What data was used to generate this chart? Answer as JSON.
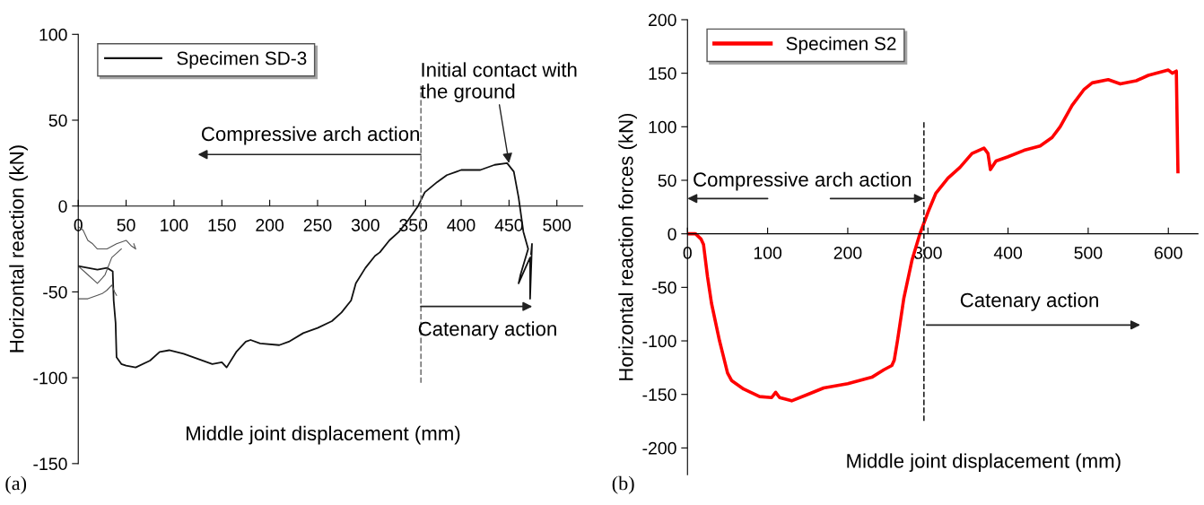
{
  "chart_data": [
    {
      "type": "line",
      "xlabel": "Middle joint displacement (mm)",
      "ylabel": "Horizontal reaction (kN)",
      "xlim": [
        0,
        527
      ],
      "xticks": [
        0,
        50,
        100,
        150,
        200,
        250,
        300,
        350,
        400,
        450,
        500
      ],
      "ylim": [
        -150,
        100
      ],
      "yticks": [
        -150,
        -100,
        -50,
        0,
        50,
        100
      ],
      "grid": false,
      "legend": "top left",
      "line_style": "solid",
      "marker": "none",
      "ref_lines": [
        {
          "axis": "x",
          "value": 358,
          "color": "#777777",
          "line_style": "dashed"
        }
      ],
      "annotations": [
        "(a)",
        "Compressive arch action",
        {
          "text": "Initial contact with\nthe ground",
          "x": 450,
          "y": 25
        },
        "Catenary action"
      ],
      "series": [
        {
          "name": "Specimen SD-3",
          "color": "#111111",
          "x": [
            0,
            10,
            20,
            30,
            36,
            37,
            39,
            40,
            45,
            50,
            60,
            75,
            85,
            95,
            110,
            125,
            140,
            150,
            155,
            165,
            175,
            180,
            190,
            210,
            220,
            235,
            250,
            265,
            275,
            285,
            290,
            300,
            310,
            315,
            325,
            335,
            345,
            355,
            362,
            375,
            385,
            400,
            420,
            435,
            448,
            455,
            460,
            465,
            470,
            462,
            460,
            468,
            472,
            472,
            474,
            473
          ],
          "values": [
            -35,
            -36,
            -37,
            -36,
            -38,
            -55,
            -68,
            -88,
            -92,
            -93,
            -94,
            -90,
            -85,
            -84,
            -86,
            -89,
            -92,
            -91,
            -94,
            -85,
            -79,
            -78,
            -80,
            -81,
            -79,
            -74,
            -71,
            -67,
            -62,
            -55,
            -45,
            -36,
            -29,
            -27,
            -20,
            -15,
            -8,
            0,
            8,
            14,
            18,
            21,
            21,
            24,
            25,
            20,
            5,
            -15,
            -25,
            -40,
            -45,
            -35,
            -30,
            -54,
            -22,
            -28
          ]
        },
        {
          "color": "#555555",
          "x": [
            0,
            10,
            20,
            25,
            30,
            35,
            38,
            40
          ],
          "values": [
            -54,
            -54,
            -52,
            -51,
            -49,
            -46,
            -50,
            -52
          ]
        },
        {
          "color": "#555555",
          "x": [
            0,
            5,
            10,
            15,
            20,
            30,
            40,
            50,
            55,
            60,
            58
          ],
          "values": [
            -12,
            -14,
            -20,
            -22,
            -25,
            -25,
            -22,
            -20,
            -23,
            -25,
            -22
          ]
        },
        {
          "color": "#555555",
          "x": [
            0,
            10,
            20,
            25,
            28,
            35,
            45
          ],
          "values": [
            -35,
            -40,
            -45,
            -42,
            -40,
            -30,
            -25
          ]
        }
      ]
    },
    {
      "type": "line",
      "xlabel": "Middle joint displacement (mm)",
      "ylabel": "Horizontal reaction forces (kN)",
      "xlim": [
        0,
        637
      ],
      "xticks": [
        0,
        100,
        200,
        300,
        400,
        500,
        600
      ],
      "ylim": [
        -225,
        200
      ],
      "yticks": [
        -200,
        -150,
        -100,
        -50,
        0,
        50,
        100,
        150,
        200
      ],
      "grid": false,
      "legend": "top left",
      "line_style": "solid",
      "marker": "none",
      "ref_lines": [
        {
          "axis": "x",
          "value": 295,
          "color": "#222222",
          "line_style": "dashed"
        }
      ],
      "annotations": [
        "(b)",
        "Compressive arch action",
        "Catenary action"
      ],
      "series": [
        {
          "name": "Specimen S2",
          "color": "#ff0000",
          "x": [
            0,
            10,
            17,
            20,
            25,
            30,
            40,
            45,
            50,
            55,
            70,
            90,
            105,
            110,
            115,
            130,
            150,
            170,
            200,
            230,
            245,
            255,
            258,
            262,
            270,
            280,
            290,
            300,
            310,
            325,
            340,
            355,
            370,
            375,
            378,
            385,
            400,
            420,
            440,
            455,
            465,
            480,
            495,
            505,
            525,
            540,
            560,
            575,
            600,
            605,
            610,
            612
          ],
          "values": [
            0,
            0,
            -5,
            -10,
            -40,
            -65,
            -100,
            -115,
            -130,
            -137,
            -145,
            -152,
            -153,
            -148,
            -153,
            -156,
            -150,
            -144,
            -140,
            -134,
            -127,
            -123,
            -118,
            -100,
            -60,
            -25,
            0,
            20,
            38,
            52,
            62,
            75,
            80,
            75,
            60,
            68,
            72,
            78,
            82,
            90,
            100,
            120,
            135,
            141,
            144,
            140,
            143,
            148,
            153,
            150,
            152,
            58
          ]
        }
      ]
    }
  ]
}
